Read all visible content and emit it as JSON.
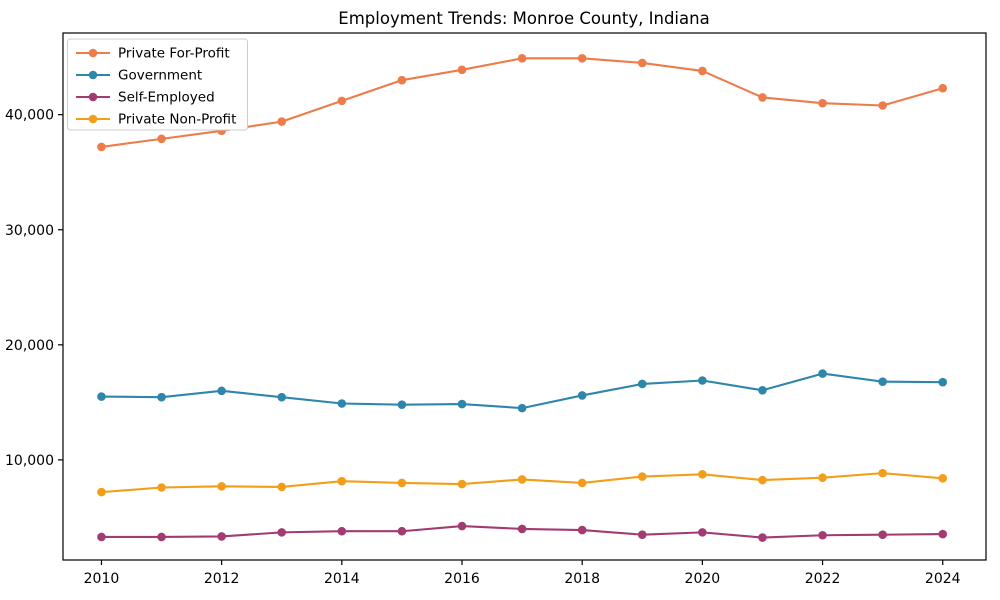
{
  "chart_data": {
    "type": "line",
    "title": "Employment Trends: Monroe County, Indiana",
    "xlabel": "",
    "ylabel": "",
    "x": [
      2010,
      2011,
      2012,
      2013,
      2014,
      2015,
      2016,
      2017,
      2018,
      2019,
      2020,
      2021,
      2022,
      2023,
      2024
    ],
    "series": [
      {
        "name": "Private For-Profit",
        "color": "#ed7c4a",
        "values": [
          37200,
          37900,
          38600,
          39400,
          41200,
          43000,
          43900,
          44900,
          44900,
          44500,
          43800,
          41500,
          41000,
          40800,
          42300
        ]
      },
      {
        "name": "Government",
        "color": "#2e86ab",
        "values": [
          15500,
          15450,
          16000,
          15450,
          14900,
          14800,
          14850,
          14500,
          15600,
          16600,
          16900,
          16050,
          17500,
          16800,
          16750
        ]
      },
      {
        "name": "Self-Employed",
        "color": "#a23b72",
        "values": [
          3300,
          3300,
          3350,
          3700,
          3800,
          3800,
          4250,
          4000,
          3900,
          3500,
          3700,
          3250,
          3450,
          3500,
          3550
        ]
      },
      {
        "name": "Private Non-Profit",
        "color": "#f29e1b",
        "values": [
          7200,
          7600,
          7700,
          7650,
          8150,
          8000,
          7900,
          8300,
          8000,
          8550,
          8750,
          8250,
          8450,
          8850,
          8400
        ]
      }
    ],
    "xticks": [
      2010,
      2012,
      2014,
      2016,
      2018,
      2020,
      2022,
      2024
    ],
    "xtick_labels": [
      "2010",
      "2012",
      "2014",
      "2016",
      "2018",
      "2020",
      "2022",
      "2024"
    ],
    "yticks": [
      10000,
      20000,
      30000,
      40000
    ],
    "ytick_labels": [
      "10,000",
      "20,000",
      "30,000",
      "40,000"
    ],
    "xlim": [
      2009.36,
      2024.72
    ],
    "ylim": [
      1300,
      47100
    ],
    "grid": false,
    "legend_position": "upper left",
    "axis_color": "#000000",
    "background_color": "#ffffff"
  }
}
